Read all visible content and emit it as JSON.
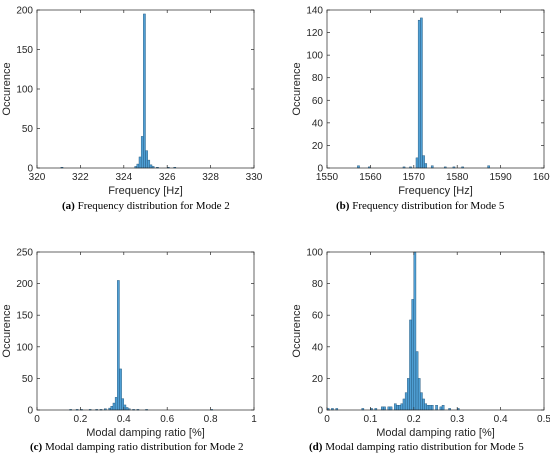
{
  "colors": {
    "bar_fill": "#4f9fd4",
    "bar_edge": "#1f4f73",
    "axis": "#262626"
  },
  "chart_data": [
    {
      "type": "bar",
      "title": "",
      "xlabel": "Frequency [Hz]",
      "ylabel": "Occurence",
      "xlim": [
        320,
        330
      ],
      "ylim": [
        0,
        200
      ],
      "xticks": [
        320,
        322,
        324,
        326,
        328,
        330
      ],
      "yticks": [
        0,
        50,
        100,
        150,
        200
      ],
      "bin_width": 0.1,
      "bins": [
        [
          321.1,
          1
        ],
        [
          324.5,
          2
        ],
        [
          324.6,
          5
        ],
        [
          324.7,
          14
        ],
        [
          324.8,
          40
        ],
        [
          324.9,
          195
        ],
        [
          325.0,
          22
        ],
        [
          325.1,
          10
        ],
        [
          325.2,
          4
        ],
        [
          325.3,
          2
        ],
        [
          325.5,
          1
        ],
        [
          326.0,
          1
        ],
        [
          326.3,
          1
        ]
      ],
      "caption_letter": "(a)",
      "caption_text": " Frequency distribution for Mode 2"
    },
    {
      "type": "bar",
      "title": "",
      "xlabel": "Frequency [Hz]",
      "ylabel": "Occurence",
      "xlim": [
        1550,
        1600
      ],
      "ylim": [
        0,
        140
      ],
      "xticks": [
        1550,
        1560,
        1570,
        1580,
        1590,
        1600
      ],
      "yticks": [
        0,
        20,
        40,
        60,
        80,
        100,
        120,
        140
      ],
      "bin_width": 0.5,
      "bins": [
        [
          1557.0,
          2
        ],
        [
          1559.5,
          1
        ],
        [
          1567.5,
          1
        ],
        [
          1569.0,
          1
        ],
        [
          1570.5,
          9
        ],
        [
          1571.0,
          131
        ],
        [
          1571.5,
          133
        ],
        [
          1572.0,
          11
        ],
        [
          1572.5,
          4
        ],
        [
          1574.0,
          2
        ],
        [
          1577.0,
          1
        ],
        [
          1579.0,
          1
        ],
        [
          1581.0,
          1
        ],
        [
          1587.0,
          2
        ]
      ],
      "caption_letter": "(b)",
      "caption_text": " Frequency distribution for Mode 5"
    },
    {
      "type": "bar",
      "title": "",
      "xlabel": "Modal damping ratio [%]",
      "ylabel": "Occurence",
      "xlim": [
        0,
        1
      ],
      "ylim": [
        0,
        250
      ],
      "xticks": [
        0,
        0.2,
        0.4,
        0.6,
        0.8,
        1
      ],
      "yticks": [
        0,
        50,
        100,
        150,
        200,
        250
      ],
      "bin_width": 0.01,
      "bins": [
        [
          0.15,
          1
        ],
        [
          0.18,
          1
        ],
        [
          0.2,
          1
        ],
        [
          0.24,
          1
        ],
        [
          0.27,
          1
        ],
        [
          0.29,
          1
        ],
        [
          0.31,
          2
        ],
        [
          0.33,
          3
        ],
        [
          0.34,
          6
        ],
        [
          0.35,
          11
        ],
        [
          0.36,
          20
        ],
        [
          0.37,
          205
        ],
        [
          0.38,
          65
        ],
        [
          0.39,
          18
        ],
        [
          0.4,
          8
        ],
        [
          0.41,
          4
        ],
        [
          0.42,
          2
        ],
        [
          0.44,
          1
        ],
        [
          0.46,
          1
        ],
        [
          0.5,
          1
        ],
        [
          0.8,
          1
        ]
      ],
      "caption_letter": "(c)",
      "caption_text": " Modal damping ratio distribution for Mode 2"
    },
    {
      "type": "bar",
      "title": "",
      "xlabel": "Modal damping ratio [%]",
      "ylabel": "Occurence",
      "xlim": [
        0,
        0.5
      ],
      "ylim": [
        0,
        100
      ],
      "xticks": [
        0,
        0.1,
        0.2,
        0.3,
        0.4,
        0.5
      ],
      "yticks": [
        0,
        20,
        40,
        60,
        80,
        100
      ],
      "bin_width": 0.005,
      "bins": [
        [
          0.0,
          1
        ],
        [
          0.01,
          1
        ],
        [
          0.02,
          1
        ],
        [
          0.08,
          1
        ],
        [
          0.1,
          1
        ],
        [
          0.11,
          1
        ],
        [
          0.125,
          2
        ],
        [
          0.13,
          2
        ],
        [
          0.14,
          2
        ],
        [
          0.145,
          2
        ],
        [
          0.155,
          4
        ],
        [
          0.16,
          3
        ],
        [
          0.165,
          3
        ],
        [
          0.17,
          4
        ],
        [
          0.175,
          7
        ],
        [
          0.18,
          11
        ],
        [
          0.185,
          20
        ],
        [
          0.19,
          57
        ],
        [
          0.195,
          70
        ],
        [
          0.2,
          100
        ],
        [
          0.205,
          37
        ],
        [
          0.21,
          20
        ],
        [
          0.215,
          11
        ],
        [
          0.22,
          7
        ],
        [
          0.225,
          4
        ],
        [
          0.23,
          3
        ],
        [
          0.235,
          3
        ],
        [
          0.24,
          3
        ],
        [
          0.25,
          3
        ],
        [
          0.26,
          2
        ],
        [
          0.265,
          3
        ],
        [
          0.28,
          1
        ],
        [
          0.3,
          1
        ]
      ],
      "caption_letter": "(d)",
      "caption_text": " Modal damping ratio distribution for Mode 5"
    }
  ]
}
